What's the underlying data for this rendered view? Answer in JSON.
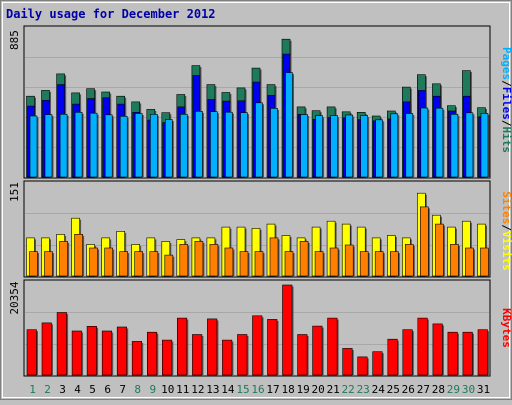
{
  "chart_data": [
    {
      "type": "bar",
      "title": "Daily usage for December 2012",
      "categories": [
        "1",
        "2",
        "3",
        "4",
        "5",
        "6",
        "7",
        "8",
        "9",
        "10",
        "11",
        "12",
        "13",
        "14",
        "15",
        "16",
        "17",
        "18",
        "19",
        "20",
        "21",
        "22",
        "23",
        "24",
        "25",
        "26",
        "27",
        "28",
        "29",
        "30",
        "31"
      ],
      "weekend_days": [
        "1",
        "2",
        "8",
        "9",
        "15",
        "16",
        "22",
        "23",
        "29",
        "30"
      ],
      "ymax_label": "885",
      "ylim": [
        0,
        885
      ],
      "right_label_parts": [
        "Pages",
        "/",
        "Files",
        "/",
        "Hits"
      ],
      "series": [
        {
          "name": "Hits",
          "color": "#1e7a5a",
          "values": [
            490,
            525,
            625,
            510,
            535,
            515,
            490,
            455,
            410,
            390,
            500,
            675,
            560,
            512,
            540,
            660,
            560,
            835,
            425,
            402,
            425,
            395,
            392,
            370,
            400,
            545,
            620,
            565,
            432,
            645,
            420
          ]
        },
        {
          "name": "Files",
          "color": "#0000ee",
          "values": [
            430,
            465,
            560,
            442,
            475,
            480,
            442,
            392,
            345,
            330,
            425,
            615,
            470,
            460,
            462,
            575,
            495,
            745,
            380,
            350,
            360,
            358,
            348,
            340,
            352,
            455,
            525,
            490,
            400,
            490,
            365
          ]
        },
        {
          "name": "Pages",
          "color": "#00b0ff",
          "values": [
            370,
            378,
            380,
            392,
            387,
            377,
            368,
            385,
            380,
            348,
            380,
            398,
            396,
            393,
            390,
            450,
            416,
            633,
            379,
            372,
            372,
            376,
            373,
            347,
            383,
            385,
            418,
            417,
            380,
            389,
            386
          ]
        }
      ]
    },
    {
      "type": "bar",
      "categories": [
        "1",
        "2",
        "3",
        "4",
        "5",
        "6",
        "7",
        "8",
        "9",
        "10",
        "11",
        "12",
        "13",
        "14",
        "15",
        "16",
        "17",
        "18",
        "19",
        "20",
        "21",
        "22",
        "23",
        "24",
        "25",
        "26",
        "27",
        "28",
        "29",
        "30",
        "31"
      ],
      "ymax_label": "151",
      "ylim": [
        0,
        151
      ],
      "right_label_parts": [
        "Sites",
        "/",
        "Visits"
      ],
      "series": [
        {
          "name": "Visits",
          "color": "#ffff00",
          "values": [
            64,
            64,
            70,
            97,
            53,
            64,
            75,
            53,
            64,
            58,
            61,
            64,
            64,
            82,
            82,
            80,
            87,
            68,
            64,
            82,
            92,
            87,
            82,
            64,
            68,
            64,
            139,
            102,
            82,
            92,
            87
          ]
        },
        {
          "name": "Sites",
          "color": "#ff8000",
          "values": [
            41,
            41,
            58,
            70,
            47,
            47,
            41,
            41,
            41,
            35,
            53,
            58,
            53,
            47,
            41,
            41,
            64,
            41,
            58,
            41,
            47,
            52,
            41,
            41,
            41,
            53,
            116,
            87,
            53,
            47,
            47
          ]
        }
      ]
    },
    {
      "type": "bar",
      "categories": [
        "1",
        "2",
        "3",
        "4",
        "5",
        "6",
        "7",
        "8",
        "9",
        "10",
        "11",
        "12",
        "13",
        "14",
        "15",
        "16",
        "17",
        "18",
        "19",
        "20",
        "21",
        "22",
        "23",
        "24",
        "25",
        "26",
        "27",
        "28",
        "29",
        "30",
        "31"
      ],
      "ymax_label": "20354",
      "ylim": [
        0,
        20354
      ],
      "right_label_parts": [
        "KBytes"
      ],
      "series": [
        {
          "name": "KBytes",
          "color": "#ff0000",
          "values": [
            10250,
            11785,
            14130,
            9960,
            11005,
            9940,
            10850,
            7600,
            9680,
            7890,
            12860,
            9150,
            12680,
            7890,
            9150,
            13390,
            12570,
            20354,
            9150,
            11060,
            12860,
            6010,
            4090,
            5270,
            8100,
            10250,
            12860,
            11565,
            9680,
            9680,
            10250
          ]
        }
      ]
    }
  ],
  "colors": {
    "background": "#c0c0c0",
    "plot_bg": "#c0c0c0",
    "border": "#000000",
    "title_text": "#0000aa",
    "day_text": "#000000",
    "weekend_day_text": "#1e7a5a",
    "pages_label": "#00b0ff",
    "files_label": "#0000ee",
    "hits_label": "#1e7a5a",
    "sites_label": "#ff8000",
    "visits_label": "#ffff00",
    "kbytes_label": "#ff0000"
  }
}
